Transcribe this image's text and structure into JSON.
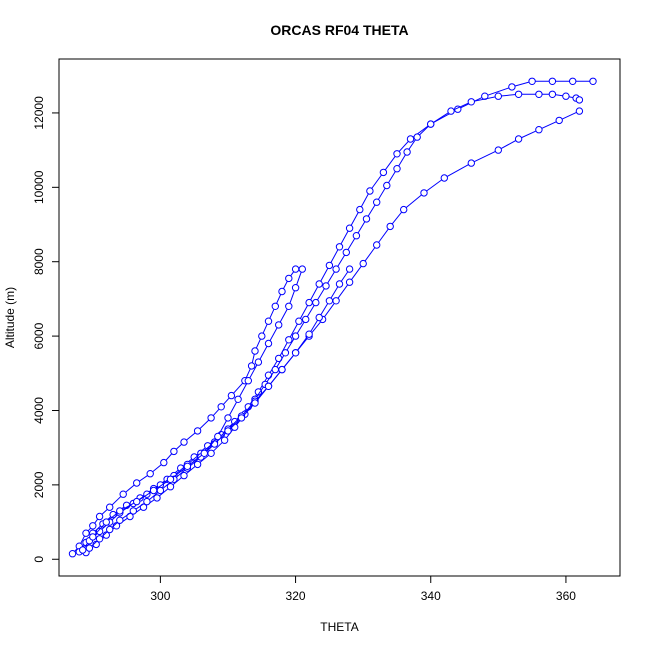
{
  "chart_data": {
    "type": "line",
    "title": "ORCAS RF04 THETA",
    "xlabel": "THETA",
    "ylabel": "Altitude (m)",
    "xlim": [
      285,
      368
    ],
    "ylim": [
      -450,
      13450
    ],
    "xticks": [
      300,
      320,
      340,
      360
    ],
    "yticks": [
      0,
      2000,
      4000,
      6000,
      8000,
      10000,
      12000
    ],
    "series_color": "#0000ff",
    "markers": "open-circle",
    "grid": false,
    "series": [
      {
        "x": [
          287.0,
          288.0,
          289.0,
          290.0,
          291.0,
          292.5,
          294.5,
          296.5,
          298.5,
          300.5,
          302.0,
          303.5,
          305.5,
          307.5,
          309.0,
          310.5,
          312.5,
          313.5,
          314.0,
          315.0,
          316.0,
          317.0,
          318.0,
          319.0,
          320.0
        ],
        "y": [
          150,
          350,
          700,
          900,
          1150,
          1400,
          1750,
          2050,
          2300,
          2600,
          2900,
          3150,
          3450,
          3800,
          4100,
          4400,
          4800,
          5200,
          5600,
          6000,
          6400,
          6800,
          7200,
          7550,
          7800
        ]
      },
      {
        "x": [
          288.0,
          289.0,
          290.0,
          291.5,
          293.0,
          295.0,
          297.0,
          299.0,
          301.0,
          303.0,
          305.0,
          307.0,
          309.0,
          311.0,
          313.0,
          314.5,
          316.0,
          317.5,
          319.0,
          320.5,
          322.0,
          323.5,
          325.0,
          326.5,
          328.0,
          329.5,
          331.0,
          333.0,
          335.0,
          337.0,
          340.0,
          344.0,
          348.0,
          352.0,
          355.0,
          358.0,
          361.0,
          364.0
        ],
        "y": [
          200,
          450,
          700,
          950,
          1200,
          1450,
          1650,
          1900,
          2150,
          2450,
          2750,
          3050,
          3350,
          3700,
          4100,
          4500,
          4950,
          5400,
          5900,
          6400,
          6900,
          7400,
          7900,
          8400,
          8900,
          9400,
          9900,
          10400,
          10900,
          11300,
          11700,
          12100,
          12450,
          12700,
          12850,
          12850,
          12850,
          12850
        ]
      },
      {
        "x": [
          289.0,
          290.5,
          292.0,
          293.5,
          295.5,
          297.5,
          299.5,
          301.5,
          303.5,
          305.5,
          307.5,
          309.5,
          311.0,
          312.5,
          314.0,
          315.5,
          317.0,
          318.5,
          320.0,
          321.5,
          323.0,
          324.5,
          326.0,
          327.5,
          329.0,
          330.5,
          332.0,
          333.5,
          335.0,
          336.5,
          338.0,
          340.0,
          343.0,
          346.0,
          350.0,
          353.0,
          356.0,
          358.0,
          360.0,
          361.5,
          362.0
        ],
        "y": [
          180,
          400,
          650,
          900,
          1150,
          1400,
          1650,
          1950,
          2250,
          2550,
          2850,
          3200,
          3550,
          3900,
          4300,
          4700,
          5100,
          5550,
          6000,
          6450,
          6900,
          7350,
          7800,
          8250,
          8700,
          9150,
          9600,
          10050,
          10500,
          10950,
          11350,
          11700,
          12050,
          12300,
          12450,
          12500,
          12500,
          12500,
          12450,
          12400,
          12350
        ]
      },
      {
        "x": [
          288.5,
          289.5,
          291.0,
          292.5,
          294.0,
          296.0,
          298.0,
          300.0,
          302.0,
          304.0,
          306.0,
          308.0,
          310.0,
          312.0,
          314.0,
          316.0,
          318.0,
          320.0,
          322.0,
          324.0,
          326.0,
          328.0,
          330.0,
          332.0,
          334.0,
          336.0,
          339.0,
          342.0,
          346.0,
          350.0,
          353.0,
          356.0,
          359.0,
          362.0
        ],
        "y": [
          250,
          500,
          750,
          1000,
          1250,
          1500,
          1750,
          2000,
          2250,
          2550,
          2850,
          3150,
          3500,
          3850,
          4250,
          4650,
          5100,
          5550,
          6000,
          6450,
          6950,
          7450,
          7950,
          8450,
          8950,
          9400,
          9850,
          10250,
          10650,
          11000,
          11300,
          11550,
          11800,
          12050
        ]
      },
      {
        "x": [
          289.5,
          291.0,
          292.5,
          294.0,
          296.0,
          298.0,
          300.0,
          302.0,
          304.0,
          306.0,
          308.0,
          310.0,
          312.0,
          314.0,
          316.0,
          318.0,
          320.0,
          322.0,
          323.5,
          325.0,
          326.5,
          328.0
        ],
        "y": [
          300,
          550,
          800,
          1050,
          1300,
          1550,
          1850,
          2150,
          2450,
          2750,
          3100,
          3450,
          3800,
          4200,
          4650,
          5100,
          5550,
          6050,
          6500,
          6950,
          7400,
          7800
        ]
      },
      {
        "x": [
          290.0,
          292.0,
          294.0,
          296.5,
          299.0,
          301.5,
          304.0,
          306.5,
          308.5,
          310.0,
          311.5,
          313.0,
          314.5,
          316.0,
          317.5,
          319.0,
          320.0,
          321.0
        ],
        "y": [
          600,
          1000,
          1300,
          1550,
          1850,
          2150,
          2500,
          2850,
          3300,
          3800,
          4300,
          4800,
          5300,
          5800,
          6300,
          6800,
          7300,
          7800
        ]
      }
    ]
  }
}
